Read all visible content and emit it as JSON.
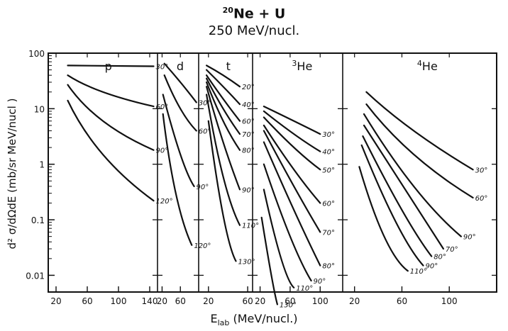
{
  "chart_data": {
    "type": "line",
    "title_nucleus_mass": "20",
    "title_reaction": "Ne + U",
    "subtitle": "250 MeV/nucl.",
    "ylabel": "d² σ/dΩdE (mb/sr MeV/nucl )",
    "xlabel_main": "E",
    "xlabel_sub": "lab",
    "xlabel_unit": "(MeV/nucl.)",
    "y_scale": "log",
    "ylim": [
      0.005,
      100
    ],
    "y_ticks": [
      100,
      10,
      1,
      0.1,
      0.01
    ],
    "y_tick_labels": [
      "100",
      "10",
      "1",
      "0.1",
      "0.01"
    ],
    "panels": [
      {
        "particle": "p",
        "xlim": [
          10,
          150
        ],
        "x_ticks": [
          20,
          60,
          100,
          140
        ],
        "x_tick_labels": [
          "20",
          "60",
          "100",
          "140"
        ],
        "series": [
          {
            "name": "30°",
            "x": [
              35,
              145
            ],
            "y": [
              60,
              58
            ]
          },
          {
            "name": "60°",
            "x": [
              35,
              80,
              145
            ],
            "y": [
              40,
              20,
              11
            ]
          },
          {
            "name": "90°",
            "x": [
              35,
              80,
              145
            ],
            "y": [
              27,
              6,
              1.8
            ]
          },
          {
            "name": "120°",
            "x": [
              35,
              80,
              145
            ],
            "y": [
              14,
              1.5,
              0.22
            ]
          }
        ]
      },
      {
        "particle": "d",
        "xlim": [
          10,
          100
        ],
        "x_ticks": [
          20,
          60
        ],
        "x_tick_labels": [
          "20",
          "60"
        ],
        "series": [
          {
            "name": "30°",
            "x": [
              25,
              60,
              95
            ],
            "y": [
              65,
              30,
              13
            ]
          },
          {
            "name": "60°",
            "x": [
              25,
              60,
              95
            ],
            "y": [
              40,
              10,
              4
            ]
          },
          {
            "name": "90°",
            "x": [
              22,
              60,
              90
            ],
            "y": [
              18,
              1.5,
              0.4
            ]
          },
          {
            "name": "120°",
            "x": [
              22,
              50,
              85
            ],
            "y": [
              8,
              0.3,
              0.035
            ]
          }
        ]
      },
      {
        "particle": "t",
        "xlim": [
          10,
          65
        ],
        "x_ticks": [
          20,
          60
        ],
        "x_tick_labels": [
          "20",
          "60"
        ],
        "series": [
          {
            "name": "20°",
            "x": [
              18,
              35,
              52
            ],
            "y": [
              60,
              40,
              25
            ]
          },
          {
            "name": "40°",
            "x": [
              18,
              35,
              52
            ],
            "y": [
              50,
              25,
              12
            ]
          },
          {
            "name": "60°",
            "x": [
              18,
              35,
              52
            ],
            "y": [
              40,
              15,
              6
            ]
          },
          {
            "name": "70°",
            "x": [
              18,
              35,
              52
            ],
            "y": [
              35,
              10,
              3.5
            ]
          },
          {
            "name": "80°",
            "x": [
              18,
              35,
              52
            ],
            "y": [
              30,
              6,
              1.8
            ]
          },
          {
            "name": "90°",
            "x": [
              18,
              35,
              52
            ],
            "y": [
              25,
              2.5,
              0.35
            ]
          },
          {
            "name": "110°",
            "x": [
              18,
              35,
              52
            ],
            "y": [
              18,
              0.6,
              0.08
            ]
          },
          {
            "name": "130°",
            "x": [
              20,
              35,
              48
            ],
            "y": [
              6,
              0.12,
              0.018
            ]
          }
        ]
      },
      {
        "particle": "He",
        "particle_mass": "3",
        "xlim": [
          10,
          130
        ],
        "x_ticks": [
          20,
          60,
          100
        ],
        "x_tick_labels": [
          "20",
          "60",
          "100"
        ],
        "series": [
          {
            "name": "30°",
            "x": [
              25,
              65,
              100
            ],
            "y": [
              11,
              6,
              3.5
            ]
          },
          {
            "name": "40°",
            "x": [
              25,
              65,
              100
            ],
            "y": [
              9,
              3.5,
              1.7
            ]
          },
          {
            "name": "50°",
            "x": [
              25,
              65,
              100
            ],
            "y": [
              7,
              2,
              0.8
            ]
          },
          {
            "name": "60°",
            "x": [
              25,
              65,
              100
            ],
            "y": [
              5,
              0.8,
              0.2
            ]
          },
          {
            "name": "70°",
            "x": [
              25,
              65,
              100
            ],
            "y": [
              4,
              0.4,
              0.06
            ]
          },
          {
            "name": "80°",
            "x": [
              25,
              65,
              100
            ],
            "y": [
              2.5,
              0.15,
              0.015
            ]
          },
          {
            "name": "90°",
            "x": [
              25,
              60,
              88
            ],
            "y": [
              1.0,
              0.05,
              0.008
            ]
          },
          {
            "name": "110°",
            "x": [
              25,
              48,
              65
            ],
            "y": [
              0.35,
              0.02,
              0.006
            ]
          },
          {
            "name": "130°",
            "x": [
              22,
              35,
              43
            ],
            "y": [
              0.11,
              0.01,
              0.003
            ]
          }
        ]
      },
      {
        "particle": "He",
        "particle_mass": "4",
        "xlim": [
          10,
          140
        ],
        "x_ticks": [
          20,
          60,
          100
        ],
        "x_tick_labels": [
          "20",
          "60",
          "100"
        ],
        "series": [
          {
            "name": "30°",
            "x": [
              30,
              70,
              120
            ],
            "y": [
              20,
              4,
              0.8
            ]
          },
          {
            "name": "60°",
            "x": [
              30,
              70,
              120
            ],
            "y": [
              12,
              1.5,
              0.25
            ]
          },
          {
            "name": "90°",
            "x": [
              28,
              70,
              110
            ],
            "y": [
              8,
              0.4,
              0.05
            ]
          },
          {
            "name": "70°",
            "x": [
              28,
              65,
              95
            ],
            "y": [
              5,
              0.3,
              0.03
            ]
          },
          {
            "name": "80°",
            "x": [
              27,
              60,
              85
            ],
            "y": [
              3.2,
              0.15,
              0.022
            ]
          },
          {
            "name": "90°",
            "x": [
              26,
              55,
              78
            ],
            "y": [
              2.2,
              0.09,
              0.015
            ]
          },
          {
            "name": "110°",
            "x": [
              24,
              45,
              65
            ],
            "y": [
              0.9,
              0.05,
              0.012
            ]
          }
        ]
      }
    ]
  }
}
